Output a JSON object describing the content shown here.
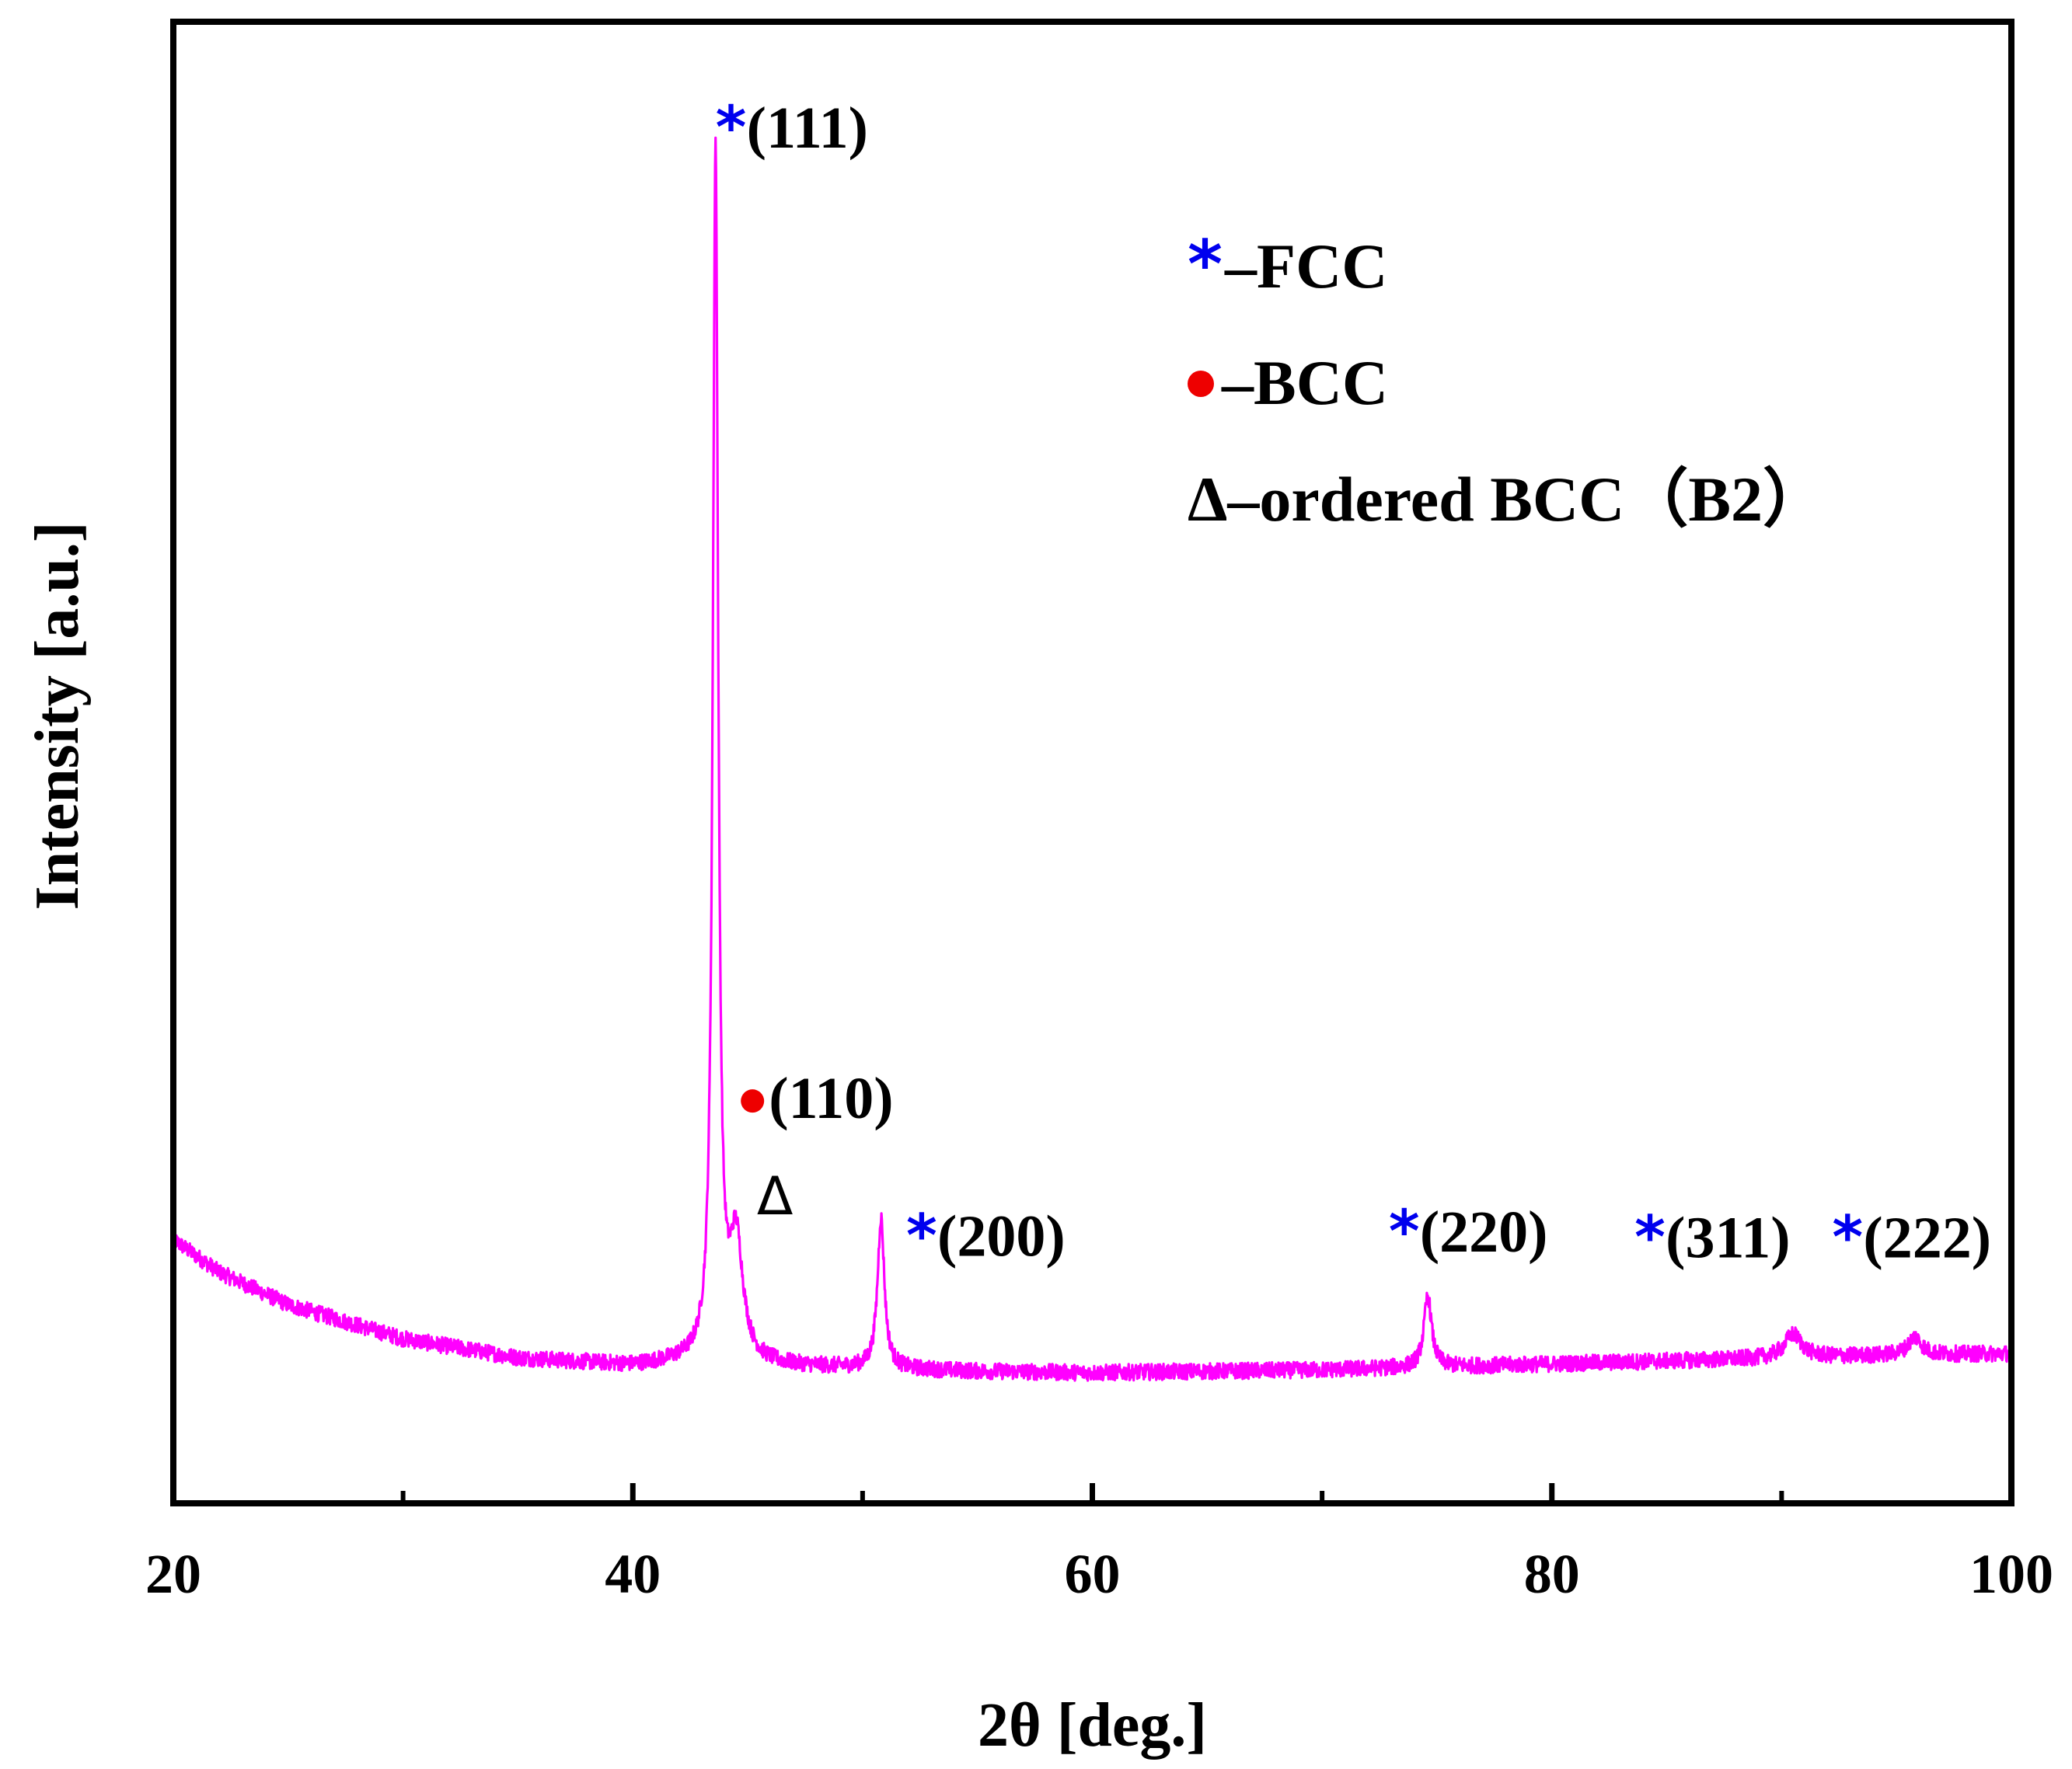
{
  "chart_data": {
    "type": "line",
    "title": "",
    "xlabel": "2θ [deg.]",
    "ylabel": "Intensity [a.u.]",
    "xlim": [
      20,
      100
    ],
    "ylim": [
      0,
      100
    ],
    "x_ticks": [
      20,
      40,
      60,
      80,
      100
    ],
    "x_tick_labels": [
      "20",
      "40",
      "60",
      "80",
      "100"
    ],
    "x_minor_ticks": [
      30,
      50,
      70,
      90
    ],
    "grid": false,
    "y_tick_labels_shown": false,
    "colors": {
      "series": "#ff00ff",
      "fcc_marker": "#0000ee",
      "bcc_marker": "#ee0000",
      "axis": "#000000"
    },
    "series": [
      {
        "baseline": [
          [
            20,
            17.8
          ],
          [
            22,
            15.6
          ],
          [
            25,
            13.4
          ],
          [
            30,
            11.1
          ],
          [
            35,
            9.8
          ],
          [
            40,
            9.3
          ],
          [
            42,
            9.5
          ],
          [
            45.5,
            9.3
          ],
          [
            50,
            9.1
          ],
          [
            55,
            8.9
          ],
          [
            60,
            8.8
          ],
          [
            65,
            8.9
          ],
          [
            70,
            9.0
          ],
          [
            75,
            9.2
          ],
          [
            80,
            9.4
          ],
          [
            85,
            9.6
          ],
          [
            90,
            9.8
          ],
          [
            95,
            10.0
          ],
          [
            100,
            10.1
          ]
        ],
        "peaks": [
          {
            "center": 43.6,
            "height": 81.5,
            "width": 0.14
          },
          {
            "center": 44.5,
            "height": 8.0,
            "width": 0.35
          },
          {
            "center": 50.8,
            "height": 10.2,
            "width": 0.18
          },
          {
            "center": 74.6,
            "height": 4.8,
            "width": 0.2
          },
          {
            "center": 90.5,
            "height": 1.6,
            "width": 0.45
          },
          {
            "center": 95.8,
            "height": 1.2,
            "width": 0.35
          }
        ],
        "noise_amplitude": 0.55,
        "end_drop": {
          "x": 100,
          "y": 2
        }
      }
    ],
    "annotations": [
      {
        "id": "p111",
        "marker": "*",
        "marker_color": "#0000ee",
        "text": "(111)",
        "x": 43.6,
        "y": 91.5
      },
      {
        "id": "p110",
        "marker": "●",
        "marker_color": "#ee0000",
        "text": "(110)",
        "x": 44.7,
        "y": 26.0
      },
      {
        "id": "pB2",
        "marker": "",
        "marker_color": "#000000",
        "text": "Δ",
        "x": 45.4,
        "y": 19.5
      },
      {
        "id": "p200",
        "marker": "*",
        "marker_color": "#0000ee",
        "text": "(200)",
        "x": 51.9,
        "y": 16.7
      },
      {
        "id": "p220",
        "marker": "*",
        "marker_color": "#0000ee",
        "text": "(220)",
        "x": 72.9,
        "y": 17.0
      },
      {
        "id": "p311",
        "marker": "*",
        "marker_color": "#0000ee",
        "text": "(311)",
        "x": 83.6,
        "y": 16.6
      },
      {
        "id": "p222",
        "marker": "*",
        "marker_color": "#0000ee",
        "text": "(222)",
        "x": 92.2,
        "y": 16.6
      }
    ],
    "legend": {
      "placement": "upper-right",
      "entries": [
        {
          "marker": "*",
          "marker_color": "#0000ee",
          "text": "–FCC"
        },
        {
          "marker": "●",
          "marker_color": "#ee0000",
          "text": "–BCC"
        },
        {
          "marker": "",
          "marker_color": "#000000",
          "text": "Δ–ordered BCC（B2）"
        }
      ]
    }
  }
}
